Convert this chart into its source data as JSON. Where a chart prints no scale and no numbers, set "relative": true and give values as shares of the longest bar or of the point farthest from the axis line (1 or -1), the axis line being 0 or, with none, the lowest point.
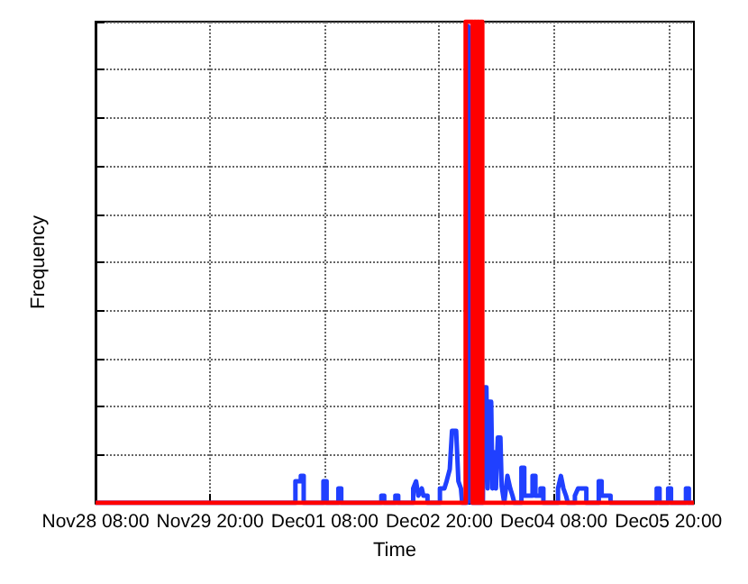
{
  "chart_data": {
    "type": "line",
    "xlabel": "Time",
    "ylabel": "Frequency",
    "relative": true,
    "grid": true,
    "marker": "none",
    "line_style": "solid",
    "xlim": [
      "--11-28T08:00",
      "--12-06T04:00"
    ],
    "xticks": [
      {
        "value": "--11-28T08:00",
        "label": "Nov28 08:00"
      },
      {
        "value": "--11-29T20:00",
        "label": "Nov29 20:00"
      },
      {
        "value": "--12-01T08:00",
        "label": "Dec01 08:00"
      },
      {
        "value": "--12-02T20:00",
        "label": "Dec02 20:00"
      },
      {
        "value": "--12-04T08:00",
        "label": "Dec04 08:00"
      },
      {
        "value": "--12-05T20:00",
        "label": "Dec05 20:00"
      }
    ],
    "series": [
      {
        "color": "#2040ff",
        "x": [
          "--11-28T08:00",
          "--11-30T22:48",
          "--11-30T22:48",
          "--12-01T00:30",
          "--12-01T00:30",
          "--12-01T01:24",
          "--12-01T01:24",
          "--12-01T07:36",
          "--12-01T07:36",
          "--12-01T08:36",
          "--12-01T08:36",
          "--12-01T12:18",
          "--12-01T12:18",
          "--12-01T13:12",
          "--12-01T13:12",
          "--12-02T01:48",
          "--12-02T01:48",
          "--12-02T02:42",
          "--12-02T02:42",
          "--12-02T06:12",
          "--12-02T06:12",
          "--12-02T07:06",
          "--12-02T07:06",
          "--12-02T11:48",
          "--12-02T11:48",
          "--12-02T12:42",
          "--12-02T13:24",
          "--12-02T14:30",
          "--12-02T15:00",
          "--12-02T16:18",
          "--12-02T16:18",
          "--12-02T20:12",
          "--12-02T20:12",
          "--12-02T21:36",
          "--12-02T22:18",
          "--12-02T23:18",
          "--12-03T00:00",
          "--12-03T01:18",
          "--12-03T02:00",
          "--12-03T02:48",
          "--12-03T03:12",
          "--12-03T04:48",
          "--12-03T05:06",
          "--12-03T05:30",
          "--12-03T05:48",
          "--12-03T06:12",
          "--12-03T09:42",
          "--12-03T10:00",
          "--12-03T10:48",
          "--12-03T11:12",
          "--12-03T11:36",
          "--12-03T12:18",
          "--12-03T12:42",
          "--12-03T13:00",
          "--12-03T13:48",
          "--12-03T14:24",
          "--12-03T15:12",
          "--12-03T15:36",
          "--12-03T16:24",
          "--12-03T17:24",
          "--12-03T18:18",
          "--12-03T19:00",
          "--12-03T19:36",
          "--12-03T21:48",
          "--12-03T21:48",
          "--12-03T22:42",
          "--12-03T22:42",
          "--12-04T01:18",
          "--12-04T01:18",
          "--12-04T02:12",
          "--12-04T02:12",
          "--12-04T03:48",
          "--12-04T03:48",
          "--12-04T04:42",
          "--12-04T04:42",
          "--12-04T09:18",
          "--12-04T09:18",
          "--12-04T10:12",
          "--12-04T11:00",
          "--12-04T11:48",
          "--12-04T12:24",
          "--12-04T14:36",
          "--12-04T14:36",
          "--12-04T15:36",
          "--12-04T18:12",
          "--12-04T18:12",
          "--12-04T22:06",
          "--12-04T22:06",
          "--12-04T23:00",
          "--12-04T23:00",
          "--12-05T01:48",
          "--12-05T01:48",
          "--12-05T16:18",
          "--12-05T16:18",
          "--12-05T17:12",
          "--12-05T17:12",
          "--12-05T19:54",
          "--12-05T19:54",
          "--12-05T20:48",
          "--12-05T20:48",
          "--12-06T01:30",
          "--12-06T01:30",
          "--12-06T02:24",
          "--12-06T02:24",
          "--12-06T04:00"
        ],
        "values": [
          0,
          0,
          0.045,
          0.045,
          0.056,
          0.056,
          0,
          0,
          0.045,
          0.045,
          0,
          0,
          0.03,
          0.03,
          0,
          0,
          0.015,
          0.015,
          0,
          0,
          0.015,
          0.015,
          0,
          0,
          0.03,
          0.045,
          0.015,
          0.03,
          0.015,
          0.015,
          0,
          0,
          0.03,
          0.03,
          0.045,
          0.07,
          0.15,
          0.15,
          0.045,
          0.03,
          0,
          0,
          0.99,
          0.93,
          0.35,
          0,
          0,
          0.24,
          0.24,
          0.03,
          0.21,
          0.21,
          0.03,
          0.106,
          0.03,
          0.136,
          0.136,
          0.035,
          0,
          0.056,
          0.03,
          0.015,
          0,
          0,
          0.073,
          0.073,
          0.015,
          0.015,
          0.056,
          0.056,
          0.015,
          0.015,
          0.03,
          0.03,
          0,
          0,
          0.03,
          0.056,
          0.03,
          0.015,
          0,
          0,
          0.015,
          0.03,
          0.03,
          0,
          0,
          0.045,
          0.045,
          0.015,
          0.015,
          0,
          0,
          0.03,
          0.03,
          0,
          0,
          0.03,
          0.03,
          0,
          0,
          0.03,
          0.03,
          0,
          0
        ]
      },
      {
        "color": "#ff0000",
        "x": [
          "--11-28T08:00",
          "--12-03T04:18",
          "--12-03T04:18",
          "--12-03T06:30",
          "--12-03T06:30",
          "--12-03T07:00",
          "--12-03T07:00",
          "--12-03T07:30",
          "--12-03T07:30",
          "--12-03T08:00",
          "--12-03T08:00",
          "--12-03T08:30",
          "--12-03T08:30",
          "--12-03T09:00",
          "--12-03T09:00",
          "--12-03T09:30",
          "--12-03T09:30",
          "--12-06T04:00"
        ],
        "values": [
          0,
          0,
          1,
          1,
          0,
          0,
          1,
          1,
          0,
          0,
          1,
          1,
          0,
          0,
          1,
          1,
          0,
          0
        ]
      }
    ]
  }
}
